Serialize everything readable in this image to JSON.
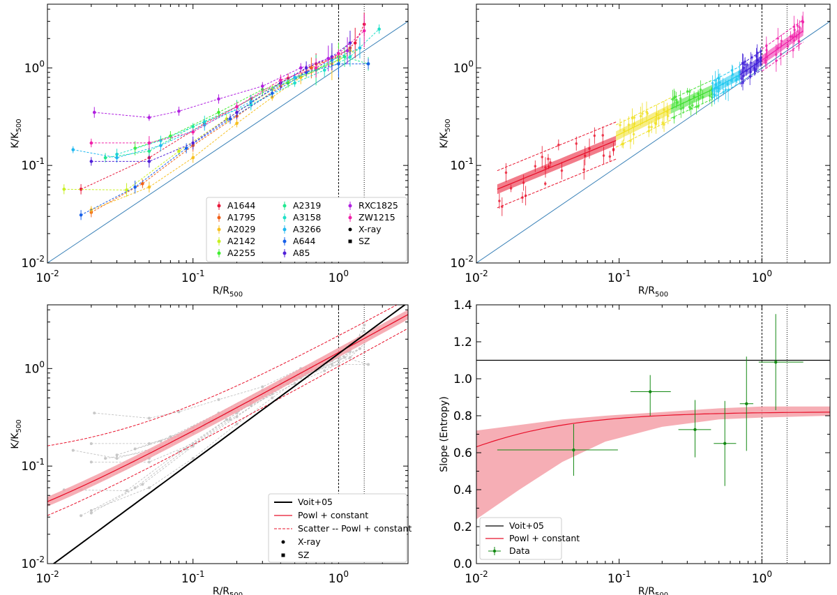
{
  "palette": {
    "A1644": "#e8173a",
    "A1795": "#f06018",
    "A2029": "#f7c020",
    "A2142": "#c8f020",
    "A2255": "#40ee30",
    "A2319": "#20e890",
    "A3158": "#20e0c8",
    "A3266": "#20b8f0",
    "A644": "#1860e8",
    "A85": "#5020d8",
    "RXC1825": "#b020e0",
    "ZW1215": "#f020a8",
    "fit_red": "#e8102a",
    "band_red": "#f5a0a8",
    "voit_line": "#000000",
    "identity_line": "#3b82b8",
    "data_green": "#118811",
    "guide": "#000000"
  },
  "chart_data": [
    {
      "id": "panel-top-left",
      "type": "line",
      "xscale": "log",
      "yscale": "log",
      "xlim": [
        0.01,
        3
      ],
      "ylim": [
        0.01,
        4.5
      ],
      "xticks": [
        "10^-2",
        "10^-1",
        "10^0"
      ],
      "yticks": [
        "10^-2",
        "10^-1",
        "10^0"
      ],
      "xlabel": {
        "base": "R/R",
        "sub": "500"
      },
      "ylabel": {
        "base": "K/K",
        "sub": "500"
      },
      "vlines": [
        1.0,
        1.5
      ],
      "reference_line": "K/K500 = R/R500",
      "legend": {
        "position": "lower-right",
        "entries": [
          "A1644",
          "A1795",
          "A2029",
          "A2142",
          "A2255",
          "A2319",
          "A3158",
          "A3266",
          "A644",
          "A85",
          "RXC1825",
          "ZW1215",
          "X-ray",
          "SZ"
        ]
      },
      "series": [
        {
          "name": "A1644",
          "x": [
            0.017,
            0.05,
            0.12,
            0.25,
            0.45,
            0.7,
            1.0,
            1.3,
            1.5
          ],
          "y": [
            0.057,
            0.12,
            0.27,
            0.48,
            0.78,
            1.1,
            1.3,
            1.8,
            2.8
          ]
        },
        {
          "name": "A1795",
          "x": [
            0.02,
            0.045,
            0.1,
            0.2,
            0.4,
            0.65,
            0.9,
            1.2
          ],
          "y": [
            0.033,
            0.065,
            0.16,
            0.32,
            0.65,
            1.0,
            1.25,
            1.6
          ]
        },
        {
          "name": "A2029",
          "x": [
            0.02,
            0.05,
            0.1,
            0.2,
            0.35,
            0.55,
            0.9,
            1.2
          ],
          "y": [
            0.035,
            0.06,
            0.12,
            0.27,
            0.5,
            0.8,
            1.1,
            1.5
          ]
        },
        {
          "name": "A2142",
          "x": [
            0.013,
            0.035,
            0.08,
            0.17,
            0.35,
            0.6,
            1.0,
            1.4
          ],
          "y": [
            0.057,
            0.056,
            0.14,
            0.3,
            0.6,
            0.9,
            1.2,
            1.6
          ]
        },
        {
          "name": "A2255",
          "x": [
            0.04,
            0.07,
            0.15,
            0.3,
            0.45,
            0.7,
            1.0
          ],
          "y": [
            0.15,
            0.2,
            0.35,
            0.6,
            0.7,
            0.95,
            1.3
          ]
        },
        {
          "name": "A2319",
          "x": [
            0.025,
            0.05,
            0.1,
            0.2,
            0.4,
            0.7,
            1.1,
            1.6
          ],
          "y": [
            0.12,
            0.14,
            0.25,
            0.4,
            0.7,
            0.95,
            1.3,
            1.1
          ]
        },
        {
          "name": "A3158",
          "x": [
            0.03,
            0.06,
            0.12,
            0.25,
            0.5,
            0.8,
            1.2,
            1.9
          ],
          "y": [
            0.13,
            0.18,
            0.28,
            0.42,
            0.7,
            0.95,
            1.3,
            2.5
          ]
        },
        {
          "name": "A3266",
          "x": [
            0.015,
            0.03,
            0.06,
            0.12,
            0.25,
            0.5,
            0.9,
            1.4
          ],
          "y": [
            0.145,
            0.12,
            0.16,
            0.26,
            0.45,
            0.8,
            1.2,
            1.6
          ]
        },
        {
          "name": "A644",
          "x": [
            0.017,
            0.04,
            0.09,
            0.18,
            0.35,
            0.6,
            1.0,
            1.6
          ],
          "y": [
            0.031,
            0.06,
            0.15,
            0.3,
            0.55,
            0.9,
            1.1,
            1.1
          ]
        },
        {
          "name": "A85",
          "x": [
            0.02,
            0.05,
            0.1,
            0.2,
            0.4,
            0.6,
            0.9,
            1.2
          ],
          "y": [
            0.11,
            0.11,
            0.17,
            0.35,
            0.7,
            1.0,
            1.3,
            1.8
          ]
        },
        {
          "name": "RXC1825",
          "x": [
            0.021,
            0.05,
            0.08,
            0.15,
            0.3,
            0.55,
            0.85,
            1.15
          ],
          "y": [
            0.35,
            0.31,
            0.36,
            0.48,
            0.65,
            1.0,
            1.25,
            1.5
          ]
        },
        {
          "name": "ZW1215",
          "x": [
            0.02,
            0.05,
            0.1,
            0.2,
            0.4,
            0.7,
            1.0,
            1.5
          ],
          "y": [
            0.17,
            0.17,
            0.22,
            0.4,
            0.75,
            1.0,
            1.4,
            2.4
          ]
        }
      ]
    },
    {
      "id": "panel-top-right",
      "type": "scatter",
      "xscale": "log",
      "yscale": "log",
      "xlim": [
        0.01,
        3
      ],
      "ylim": [
        0.01,
        4.5
      ],
      "xticks": [
        "10^-2",
        "10^-1",
        "10^0"
      ],
      "yticks": [
        "10^-2",
        "10^-1",
        "10^0"
      ],
      "xlabel": {
        "base": "R/R",
        "sub": "500"
      },
      "ylabel": {
        "base": "K/K",
        "sub": "500"
      },
      "vlines": [
        1.0,
        1.5
      ],
      "reference_line": "K/K500 = R/R500",
      "bin_fits": [
        {
          "bin": "bin1",
          "color": "#e8102a",
          "x_range": [
            0.014,
            0.095
          ],
          "y_at_ends": [
            0.057,
            0.18
          ],
          "scatter_factor": 1.55
        },
        {
          "bin": "bin2",
          "color": "#f0e020",
          "x_range": [
            0.095,
            0.23
          ],
          "y_at_ends": [
            0.2,
            0.38
          ],
          "scatter_factor": 1.3
        },
        {
          "bin": "bin3",
          "color": "#40e030",
          "x_range": [
            0.23,
            0.45
          ],
          "y_at_ends": [
            0.38,
            0.6
          ],
          "scatter_factor": 1.25
        },
        {
          "bin": "bin4",
          "color": "#20c8f0",
          "x_range": [
            0.45,
            0.7
          ],
          "y_at_ends": [
            0.6,
            0.85
          ],
          "scatter_factor": 1.22
        },
        {
          "bin": "bin5",
          "color": "#4020d8",
          "x_range": [
            0.7,
            1.0
          ],
          "y_at_ends": [
            0.85,
            1.2
          ],
          "scatter_factor": 1.25
        },
        {
          "bin": "bin6",
          "color": "#f020a8",
          "x_range": [
            1.0,
            1.95
          ],
          "y_at_ends": [
            1.2,
            2.4
          ],
          "scatter_factor": 1.3
        }
      ]
    },
    {
      "id": "panel-bottom-left",
      "type": "line",
      "xscale": "log",
      "yscale": "log",
      "xlim": [
        0.01,
        3
      ],
      "ylim": [
        0.01,
        4.5
      ],
      "xticks": [
        "10^-2",
        "10^-1",
        "10^0"
      ],
      "yticks": [
        "10^-2",
        "10^-1",
        "10^0"
      ],
      "xlabel": {
        "base": "R/R",
        "sub": "500"
      },
      "ylabel": {
        "base": "K/K",
        "sub": "500"
      },
      "vlines": [
        1.0,
        1.5
      ],
      "voit05": {
        "label": "Voit+05",
        "formula": "K/K500 = 1.42 (R/R500)^1.1"
      },
      "fit": {
        "label": "Powl + constant",
        "amplitude": 1.45,
        "slope": 0.82,
        "constant": 0.01
      },
      "scatter": {
        "label": "Scatter -- Powl + constant",
        "upper_factor": 1.42,
        "upper_add": 0.1,
        "lower_factor": 0.72,
        "lower_add": 0.0
      },
      "legend": {
        "position": "lower-right",
        "entries": [
          "Voit+05",
          "Powl + constant",
          "Scatter -- Powl + constant",
          "X-ray",
          "SZ"
        ]
      }
    },
    {
      "id": "panel-bottom-right",
      "type": "line",
      "xscale": "log",
      "yscale": "linear",
      "xlim": [
        0.01,
        3
      ],
      "ylim": [
        0.0,
        1.4
      ],
      "xticks": [
        "10^-2",
        "10^-1",
        "10^0"
      ],
      "yticks": [
        "0.0",
        "0.2",
        "0.4",
        "0.6",
        "0.8",
        "1.0",
        "1.2",
        "1.4"
      ],
      "xlabel": {
        "base": "R/R",
        "sub": "500"
      },
      "ylabel": {
        "base": "Slope (Entropy)",
        "sub": ""
      },
      "vlines": [
        1.0,
        1.5
      ],
      "voit05": {
        "label": "Voit+05",
        "slope": 1.1
      },
      "fit": {
        "label": "Powl + constant",
        "amplitude": 1.45,
        "slope": 0.82,
        "constant": 0.01
      },
      "band": {
        "lower": [
          [
            0.01,
            0.24
          ],
          [
            0.02,
            0.4
          ],
          [
            0.04,
            0.55
          ],
          [
            0.08,
            0.66
          ],
          [
            0.2,
            0.74
          ],
          [
            0.5,
            0.78
          ],
          [
            1.0,
            0.79
          ],
          [
            3.0,
            0.8
          ]
        ],
        "upper": [
          [
            0.01,
            0.72
          ],
          [
            0.02,
            0.75
          ],
          [
            0.04,
            0.78
          ],
          [
            0.08,
            0.8
          ],
          [
            0.2,
            0.82
          ],
          [
            0.5,
            0.84
          ],
          [
            1.0,
            0.85
          ],
          [
            3.0,
            0.85
          ]
        ]
      },
      "data": {
        "label": "Data",
        "points": [
          {
            "x": 0.048,
            "y": 0.615,
            "xlo": 0.014,
            "xhi": 0.098,
            "ylo": 0.475,
            "yhi": 0.755
          },
          {
            "x": 0.165,
            "y": 0.93,
            "xlo": 0.12,
            "xhi": 0.23,
            "ylo": 0.8,
            "yhi": 1.02
          },
          {
            "x": 0.34,
            "y": 0.725,
            "xlo": 0.26,
            "xhi": 0.44,
            "ylo": 0.575,
            "yhi": 0.885
          },
          {
            "x": 0.55,
            "y": 0.65,
            "xlo": 0.46,
            "xhi": 0.66,
            "ylo": 0.42,
            "yhi": 0.88
          },
          {
            "x": 0.78,
            "y": 0.865,
            "xlo": 0.7,
            "xhi": 0.87,
            "ylo": 0.61,
            "yhi": 1.12
          },
          {
            "x": 1.25,
            "y": 1.09,
            "xlo": 0.95,
            "xhi": 1.95,
            "ylo": 0.83,
            "yhi": 1.35
          }
        ]
      },
      "legend": {
        "position": "lower-left",
        "entries": [
          "Voit+05",
          "Powl + constant",
          "Data"
        ]
      }
    }
  ]
}
